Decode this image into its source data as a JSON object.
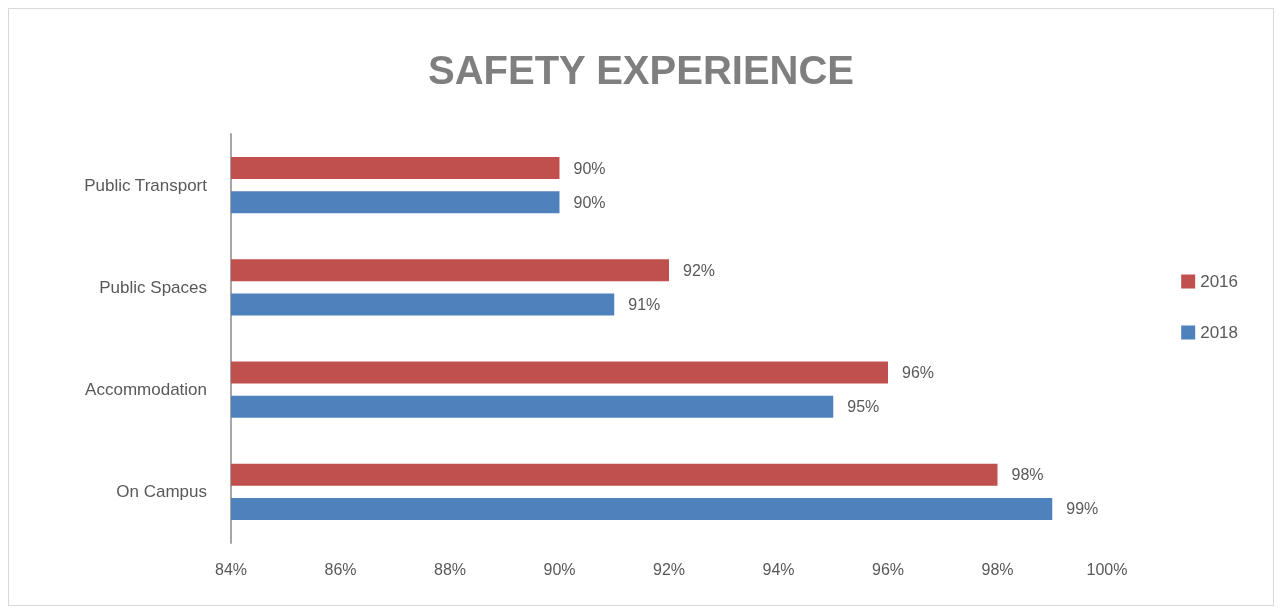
{
  "chart_data": {
    "type": "bar",
    "orientation": "horizontal",
    "title": "SAFETY EXPERIENCE",
    "categories": [
      "Public Transport",
      "Public Spaces",
      "Accommodation",
      "On Campus"
    ],
    "series": [
      {
        "name": "2016",
        "color": "#c0504d",
        "values": [
          90,
          92,
          96,
          98
        ],
        "value_labels": [
          "90%",
          "92%",
          "96%",
          "98%"
        ]
      },
      {
        "name": "2018",
        "color": "#4f81bd",
        "values": [
          90,
          91,
          95,
          99
        ],
        "value_labels": [
          "90%",
          "91%",
          "95%",
          "99%"
        ]
      }
    ],
    "xlim": [
      84,
      100
    ],
    "xticks": [
      {
        "value": 84,
        "label": "84%"
      },
      {
        "value": 86,
        "label": "86%"
      },
      {
        "value": 88,
        "label": "88%"
      },
      {
        "value": 90,
        "label": "90%"
      },
      {
        "value": 92,
        "label": "92%"
      },
      {
        "value": 94,
        "label": "94%"
      },
      {
        "value": 96,
        "label": "96%"
      },
      {
        "value": 98,
        "label": "98%"
      },
      {
        "value": 100,
        "label": "100%"
      }
    ],
    "grid": false,
    "legend": "right"
  }
}
